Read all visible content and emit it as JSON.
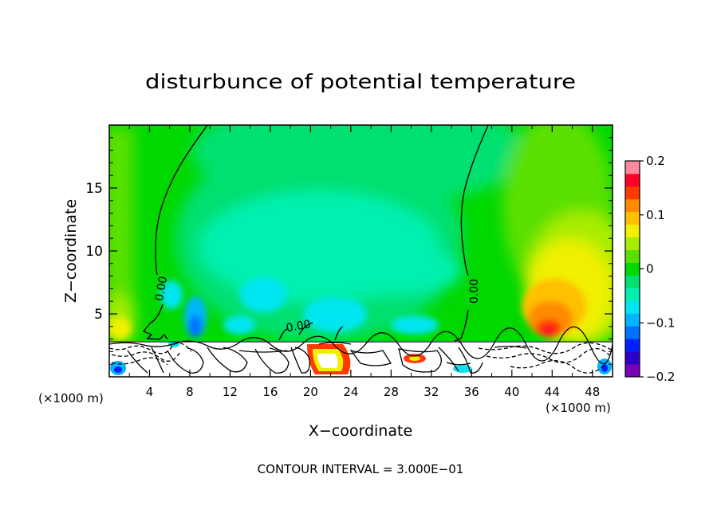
{
  "chart_data": {
    "type": "heatmap",
    "title": "disturbunce of potential temperature",
    "xlabel": "X−coordinate",
    "ylabel": "Z−coordinate",
    "x_unit": "(×1000 m)",
    "x_unit_right": "(×1000 m)",
    "xlim": [
      0,
      50
    ],
    "ylim": [
      0,
      20
    ],
    "x_ticks": [
      4,
      8,
      12,
      16,
      20,
      24,
      28,
      32,
      36,
      40,
      44,
      48
    ],
    "x_tick_labels": [
      "4",
      "8",
      "12",
      "16",
      "20",
      "24",
      "28",
      "32",
      "36",
      "40",
      "44",
      "48"
    ],
    "y_ticks": [
      5,
      10,
      15
    ],
    "y_tick_labels": [
      "5",
      "10",
      "15"
    ],
    "contour_labels": [
      {
        "text": "0.00",
        "x": 5.2,
        "y": 7.0,
        "rotate": -80
      },
      {
        "text": "0.00",
        "x": 18.8,
        "y": 4.0,
        "rotate": -10
      },
      {
        "text": "0.00",
        "x": 36.3,
        "y": 6.8,
        "rotate": -90
      }
    ],
    "colorbar": {
      "range": [
        -0.2,
        0.2
      ],
      "levels": [
        -0.2,
        -0.175,
        -0.15,
        -0.125,
        -0.1,
        -0.075,
        -0.05,
        -0.025,
        0,
        0.025,
        0.05,
        0.075,
        0.1,
        0.125,
        0.15,
        0.175,
        0.2
      ],
      "colors": [
        "#7a00b8",
        "#2a00c8",
        "#0020ff",
        "#0070ff",
        "#00b4ff",
        "#00e6f0",
        "#00f0b0",
        "#00e070",
        "#00d800",
        "#5ae000",
        "#a8ec00",
        "#f0f000",
        "#ffc000",
        "#ff8a00",
        "#ff3a00",
        "#ff0028",
        "#ff8aa0"
      ],
      "tick_values": [
        0.2,
        0.1,
        0,
        -0.1,
        -0.2
      ],
      "tick_labels": [
        "0.2",
        "0.1",
        "0",
        "−0.1",
        "−0.2"
      ]
    },
    "footer": "CONTOUR INTERVAL =  3.000E−01"
  }
}
